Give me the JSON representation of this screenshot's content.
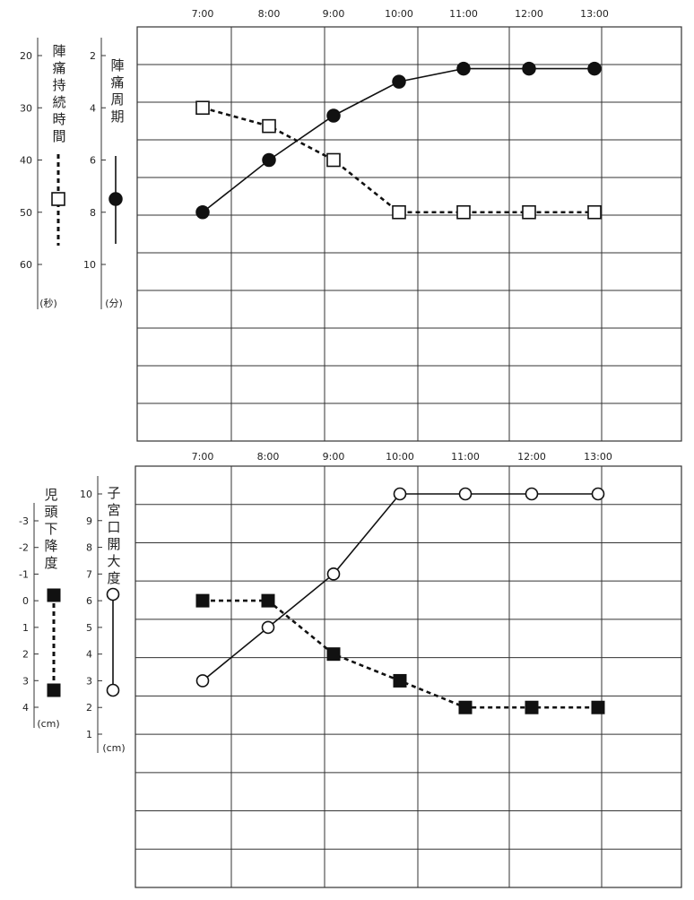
{
  "chart_data": [
    {
      "type": "line",
      "categories": [
        "7:00",
        "8:00",
        "9:00",
        "10:00",
        "11:00",
        "12:00",
        "13:00"
      ],
      "axes": {
        "left_outer": {
          "label": "陣痛持続時間",
          "unit": "(秒)",
          "ticks": [
            "20",
            "30",
            "40",
            "50",
            "60"
          ],
          "range": [
            20,
            60
          ],
          "legend_marker": "dashed-line-open-square"
        },
        "left_inner": {
          "label": "陣痛周期",
          "unit": "(分)",
          "ticks": [
            "2",
            "4",
            "6",
            "8",
            "10"
          ],
          "range": [
            2,
            10
          ],
          "legend_marker": "solid-line-filled-circle"
        }
      },
      "series": [
        {
          "axis": "left_inner",
          "marker": "filled-circle",
          "line": "solid",
          "values": [
            8,
            6,
            4.3,
            3.0,
            2.5,
            2.5,
            2.5
          ]
        },
        {
          "axis": "left_outer",
          "marker": "open-square",
          "line": "dashed",
          "values": [
            30,
            33.5,
            40,
            50,
            50,
            50,
            50
          ]
        }
      ],
      "grid": true
    },
    {
      "type": "line",
      "categories": [
        "7:00",
        "8:00",
        "9:00",
        "10:00",
        "11:00",
        "12:00",
        "13:00"
      ],
      "axes": {
        "left_outer": {
          "label": "児頭下降度",
          "unit": "(cm)",
          "ticks": [
            "-3",
            "-2",
            "-1",
            "0",
            "1",
            "2",
            "3",
            "4"
          ],
          "range": [
            -3,
            4
          ],
          "legend_marker": "dashed-line-filled-square"
        },
        "left_inner": {
          "label": "子宮口開大度",
          "unit": "(cm)",
          "ticks": [
            "10",
            "9",
            "8",
            "7",
            "6",
            "5",
            "4",
            "3",
            "2",
            "1"
          ],
          "range": [
            1,
            10
          ],
          "legend_marker": "solid-line-open-circle"
        }
      },
      "series": [
        {
          "axis": "left_inner",
          "marker": "open-circle",
          "line": "solid",
          "values": [
            3,
            5,
            7,
            10,
            10,
            10,
            10
          ]
        },
        {
          "axis": "left_inner",
          "marker": "filled-square",
          "line": "dashed",
          "values": [
            6,
            6,
            4,
            3,
            2,
            2,
            2
          ]
        }
      ],
      "grid": true
    }
  ]
}
